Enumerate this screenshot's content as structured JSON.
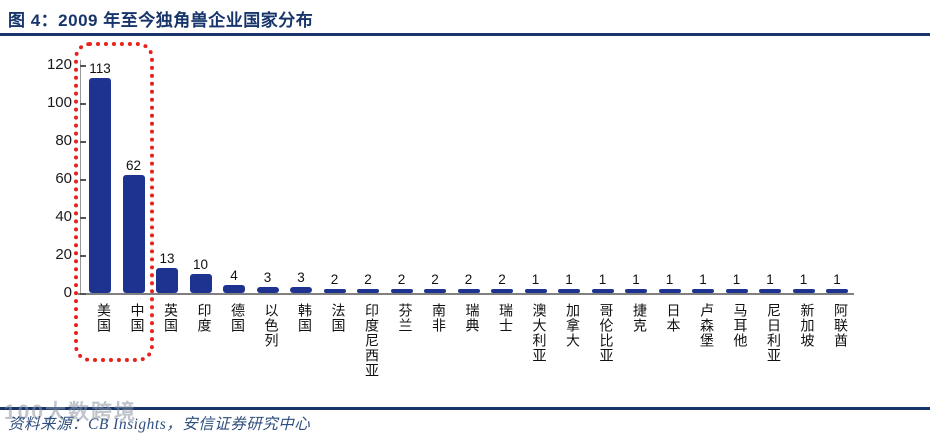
{
  "header": {
    "title": "图 4：2009 年至今独角兽企业国家分布"
  },
  "chart_data": {
    "type": "bar",
    "title": "2009 年至今独角兽企业国家分布",
    "categories": [
      "美国",
      "中国",
      "英国",
      "印度",
      "德国",
      "以色列",
      "韩国",
      "法国",
      "印度尼西亚",
      "芬兰",
      "南非",
      "瑞典",
      "瑞士",
      "澳大利亚",
      "加拿大",
      "哥伦比亚",
      "捷克",
      "日本",
      "卢森堡",
      "马耳他",
      "尼日利亚",
      "新加坡",
      "阿联酋"
    ],
    "values": [
      113,
      62,
      13,
      10,
      4,
      3,
      3,
      2,
      2,
      2,
      2,
      2,
      2,
      1,
      1,
      1,
      1,
      1,
      1,
      1,
      1,
      1,
      1
    ],
    "xlabel": "",
    "ylabel": "",
    "ylim": [
      0,
      120
    ],
    "yticks": [
      0,
      20,
      40,
      60,
      80,
      100,
      120
    ],
    "grid": false,
    "legend": null,
    "data_labels_shown": true,
    "annotation": {
      "type": "dotted-box",
      "around_categories": [
        "美国",
        "中国"
      ],
      "color": "#E8211A"
    }
  },
  "footer": {
    "source": "资料来源：CB Insights，安信证券研究中心"
  },
  "watermark": {
    "text": "100大数跨境"
  },
  "colors": {
    "title": "#17356B",
    "bar": "#1E3390",
    "highlight_box": "#E8211A",
    "axis": "#808080",
    "rule": "#17356B"
  }
}
